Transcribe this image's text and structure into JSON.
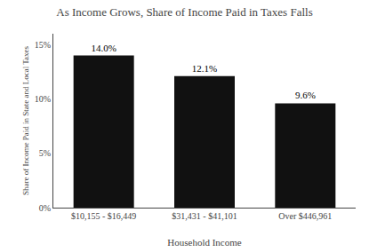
{
  "chart_data": {
    "type": "bar",
    "title": "As Income Grows, Share of Income Paid in Taxes Falls",
    "xlabel": "Household Income",
    "ylabel": "Share of Income Paid in State and Local Taxes",
    "categories": [
      "$10,155 - $16,449",
      "$31,431 - $41,101",
      "Over $446,961"
    ],
    "values": [
      14.0,
      12.1,
      9.6
    ],
    "value_labels": [
      "14.0%",
      "12.1%",
      "9.6%"
    ],
    "color": "#111111",
    "ylim": [
      0,
      16
    ],
    "yticks": [
      {
        "value": 0,
        "label": "0%"
      },
      {
        "value": 5,
        "label": "5%"
      },
      {
        "value": 10,
        "label": "10%"
      },
      {
        "value": 15,
        "label": "15%"
      }
    ],
    "grid": false
  }
}
